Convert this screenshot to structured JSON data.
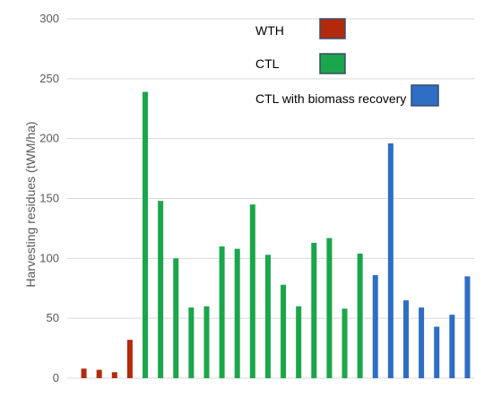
{
  "chart_data": {
    "type": "bar",
    "title": "",
    "xlabel": "",
    "ylabel": "Harvesting residues (tWM/ha)",
    "ylim": [
      0,
      300
    ],
    "yticks": [
      0,
      50,
      100,
      150,
      200,
      250,
      300
    ],
    "grid": true,
    "legend_placement": "top-right",
    "series": [
      {
        "name": "WTH",
        "color": "#b22a0c",
        "values": [
          8,
          7,
          5,
          32
        ]
      },
      {
        "name": "CTL",
        "color": "#1aa64a",
        "values": [
          239,
          148,
          100,
          59,
          60,
          110,
          108,
          145,
          103,
          78,
          60,
          113,
          117,
          58,
          104
        ]
      },
      {
        "name": "CTL with biomass recovery",
        "color": "#2e6ec4",
        "values": [
          86,
          196,
          65,
          59,
          43,
          53,
          85
        ]
      }
    ]
  }
}
